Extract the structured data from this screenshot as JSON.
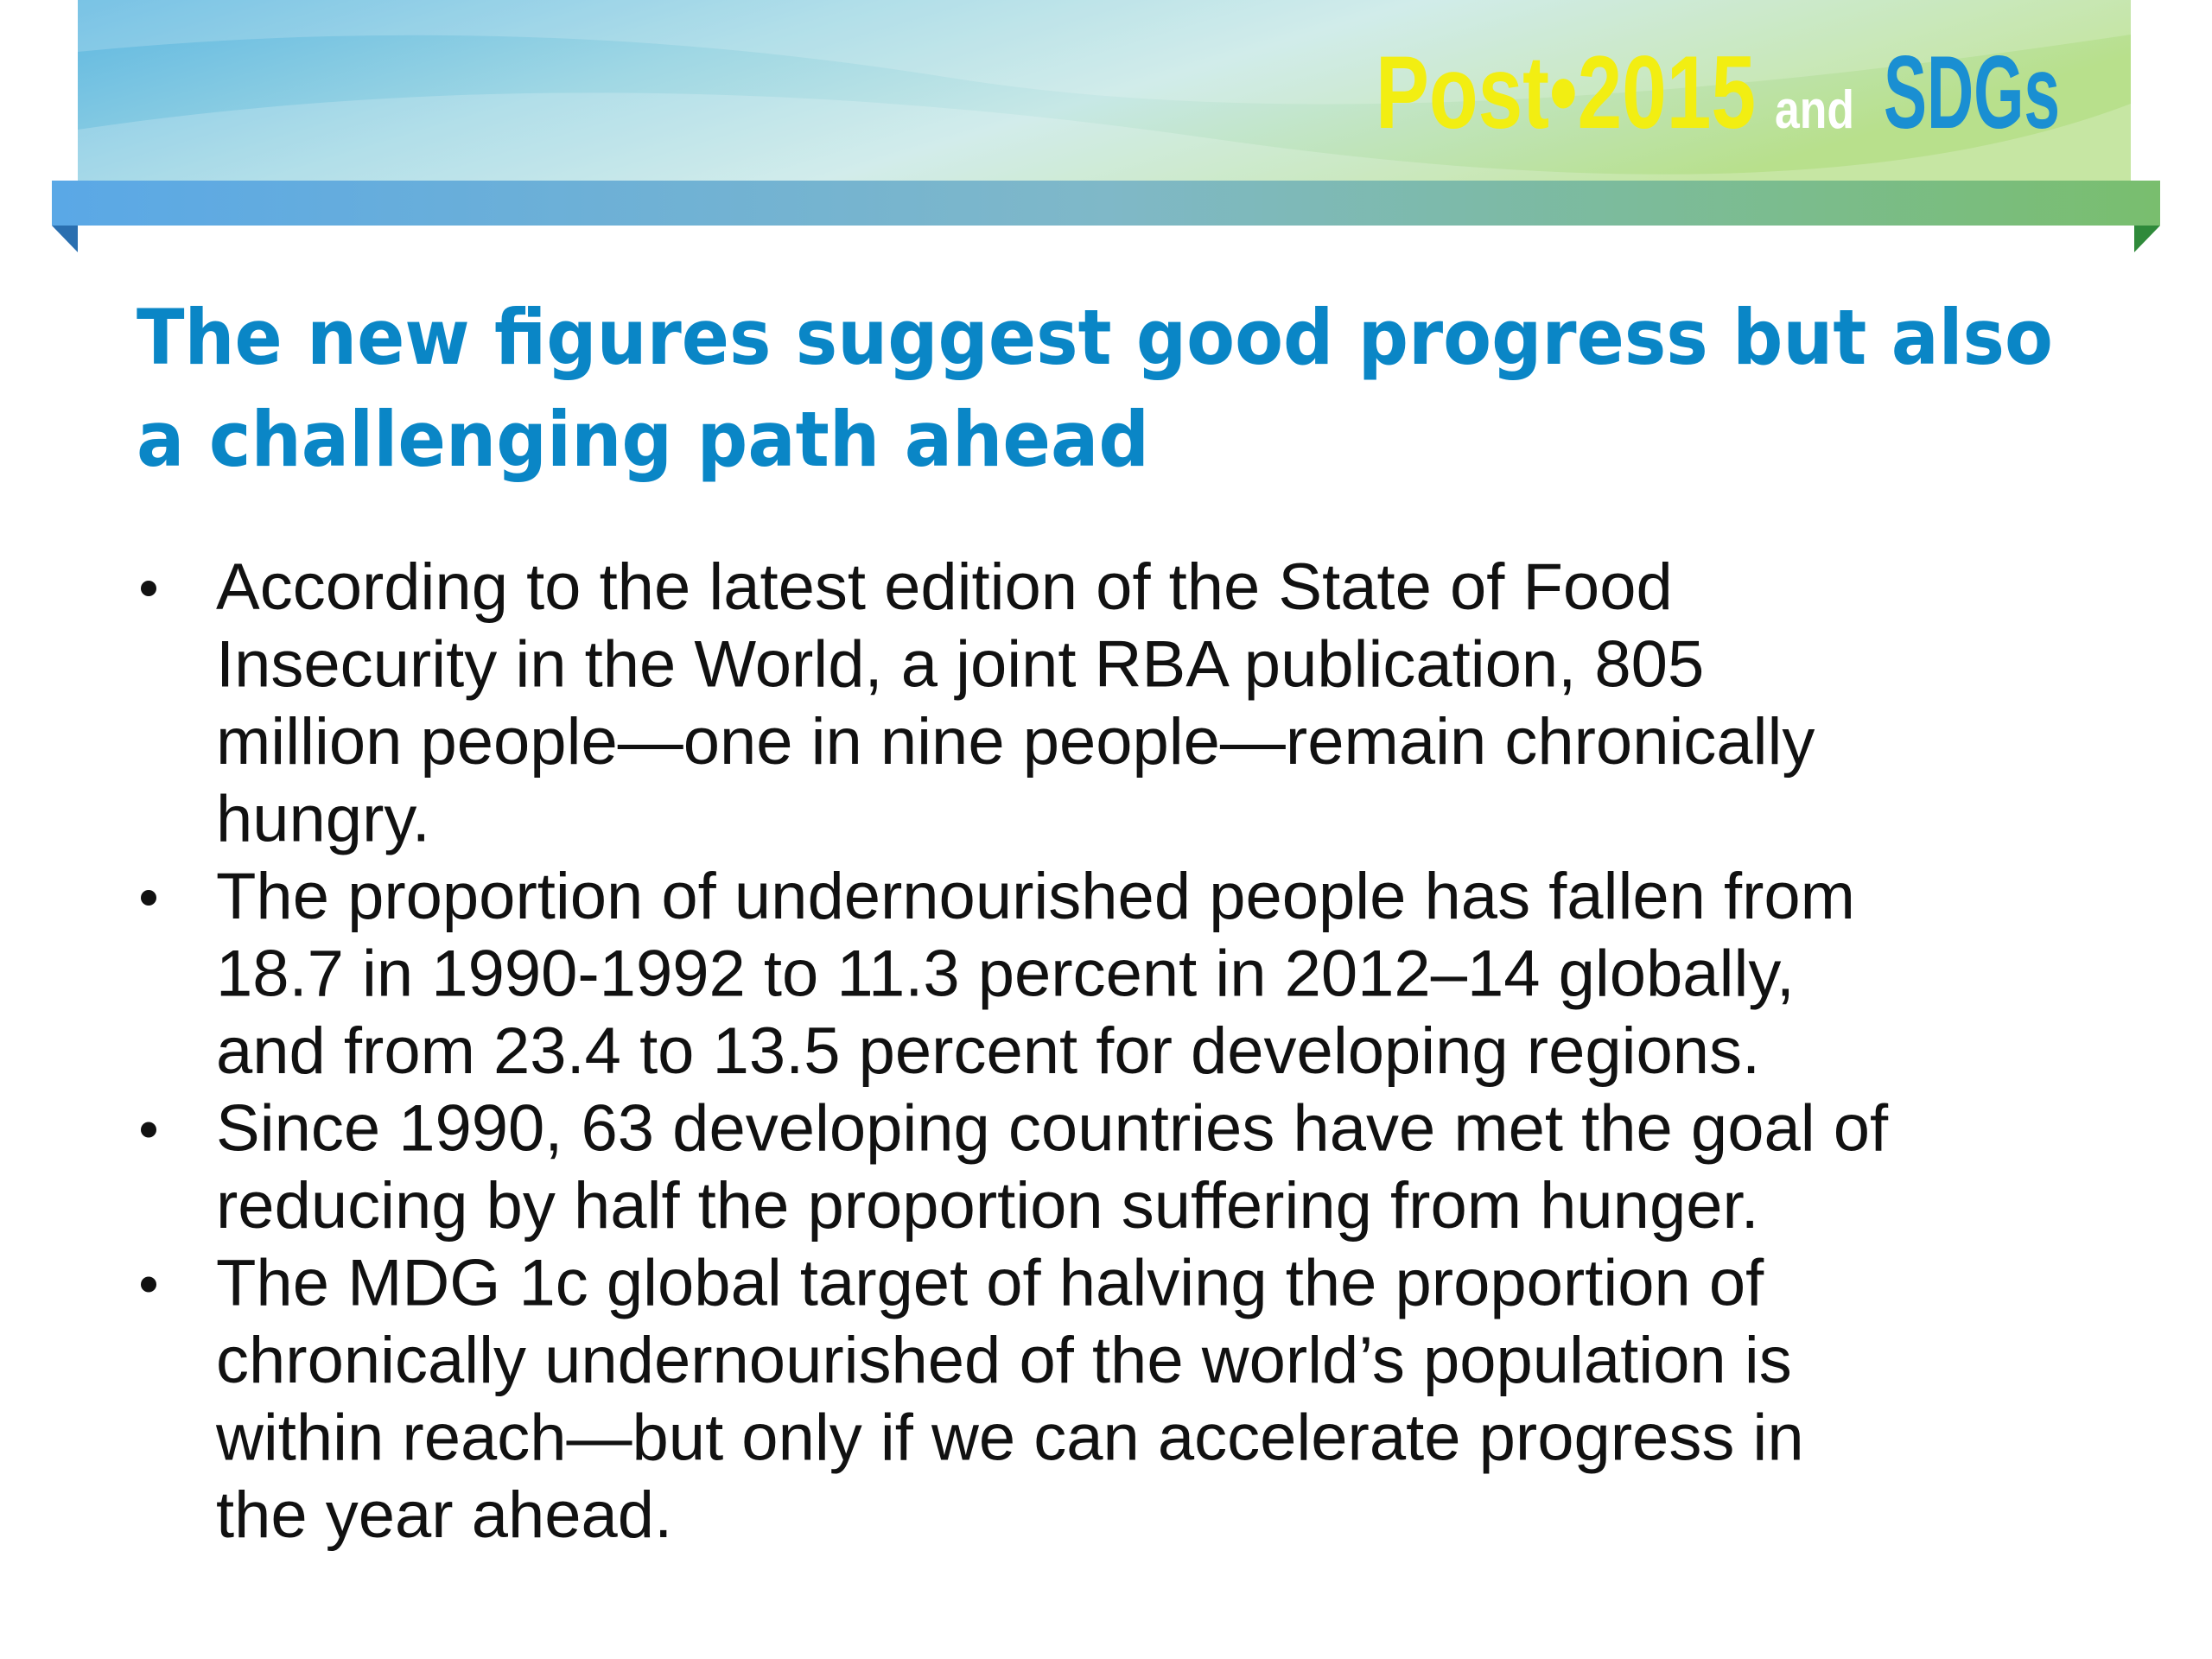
{
  "header": {
    "logo": {
      "post": "Post•2015",
      "and": "and",
      "sdgs": "SDGs"
    }
  },
  "title": [
    "The new figures suggest good progress but also",
    "a challenging path ahead"
  ],
  "bullets": [
    [
      "According to the latest edition of the State of Food",
      "Insecurity in the World, a joint RBA publication, 805",
      "million people—one in nine people—remain chronically",
      "hungry."
    ],
    [
      "The proportion of undernourished people has fallen from",
      "18.7 in 1990-1992 to 11.3 percent in 2012–14 globally,",
      "and from 23.4 to 13.5 percent for developing regions."
    ],
    [
      "Since 1990, 63 developing countries have met the goal of",
      "reducing by half the proportion suffering from hunger."
    ],
    [
      "The MDG 1c global target of halving the proportion of",
      "chronically undernourished of the world’s population is",
      "within reach—but only if we can accelerate progress in",
      "the year ahead."
    ]
  ]
}
